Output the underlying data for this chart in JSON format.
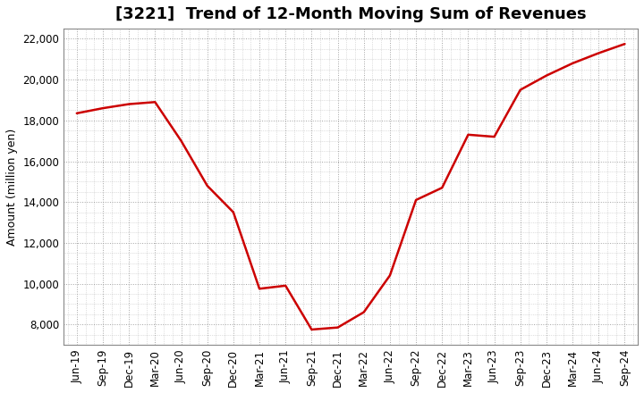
{
  "title": "[3221]  Trend of 12-Month Moving Sum of Revenues",
  "ylabel": "Amount (million yen)",
  "line_color": "#cc0000",
  "background_color": "#ffffff",
  "plot_bg_color": "#ffffff",
  "grid_color": "#999999",
  "x_labels": [
    "Jun-19",
    "Sep-19",
    "Dec-19",
    "Mar-20",
    "Jun-20",
    "Sep-20",
    "Dec-20",
    "Mar-21",
    "Jun-21",
    "Sep-21",
    "Dec-21",
    "Mar-22",
    "Jun-22",
    "Sep-22",
    "Dec-22",
    "Mar-23",
    "Jun-23",
    "Sep-23",
    "Dec-23",
    "Mar-24",
    "Jun-24",
    "Sep-24"
  ],
  "x_values": [
    0,
    1,
    2,
    3,
    4,
    5,
    6,
    7,
    8,
    9,
    10,
    11,
    12,
    13,
    14,
    15,
    16,
    17,
    18,
    19,
    20,
    21
  ],
  "y_values": [
    18350,
    18600,
    18800,
    18900,
    17000,
    14800,
    13500,
    9750,
    9900,
    7750,
    7850,
    8600,
    10400,
    14100,
    14700,
    17300,
    17200,
    19500,
    20200,
    20800,
    21300,
    21750
  ],
  "ylim": [
    7000,
    22500
  ],
  "yticks": [
    8000,
    10000,
    12000,
    14000,
    16000,
    18000,
    20000,
    22000
  ],
  "title_fontsize": 13,
  "axis_fontsize": 9,
  "tick_fontsize": 8.5,
  "line_width": 1.8,
  "minor_grid_color": "#cccccc",
  "minor_grid_alpha": 0.5
}
